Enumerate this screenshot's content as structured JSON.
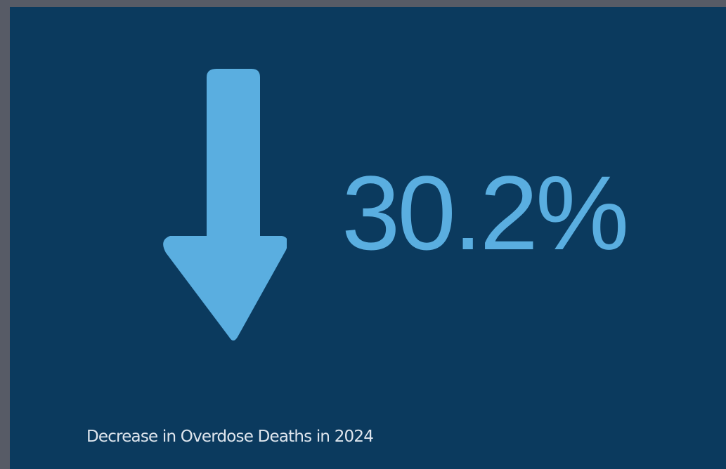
{
  "stat": {
    "value": "30.2%",
    "caption": "Decrease in Overdose Deaths in 2024",
    "direction_icon": "arrow-down-icon"
  },
  "colors": {
    "frame": "#575b66",
    "card_background": "#0b3a5e",
    "accent": "#5aaee0",
    "caption_text": "#dfe6ee"
  }
}
